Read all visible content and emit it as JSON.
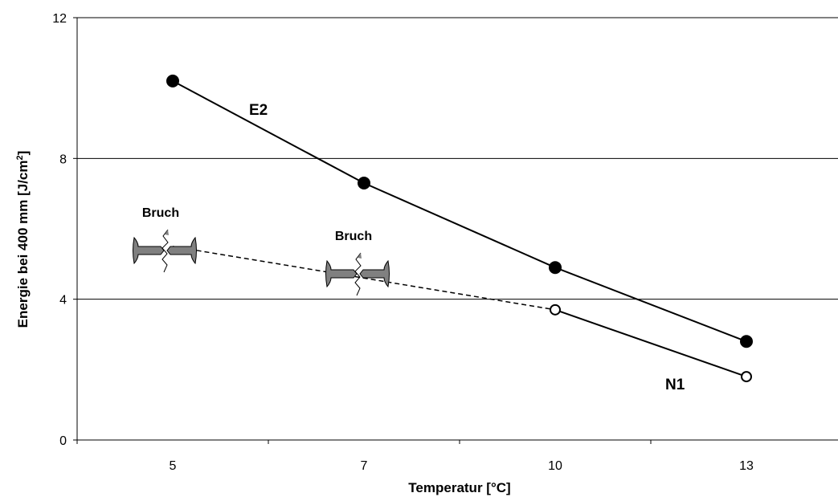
{
  "chart_data": {
    "type": "line",
    "xlabel": "Temperatur [°C]",
    "ylabel_main": "Energie bei 400 mm [J/cm",
    "ylabel_sup": "2",
    "ylabel_end": "]",
    "ylim": [
      0,
      12
    ],
    "yticks": [
      0,
      4,
      8,
      12
    ],
    "ytick_labels": [
      "0",
      "4",
      "8",
      "12"
    ],
    "grid_y": true,
    "categories": [
      "5",
      "7",
      "10",
      "13"
    ],
    "series": [
      {
        "name": "E2",
        "marker": "filled-circle",
        "line_style": "solid",
        "values": [
          10.2,
          7.3,
          4.9,
          2.8
        ]
      },
      {
        "name": "N1",
        "marker": "open-circle",
        "values": [
          null,
          null,
          3.7,
          1.8
        ]
      }
    ],
    "annotations": [
      {
        "text": "Bruch",
        "category": "5",
        "value": 5.5,
        "icon": "fractured-specimen-icon"
      },
      {
        "text": "Bruch",
        "category": "7",
        "value": 4.8,
        "icon": "fractured-specimen-icon"
      }
    ],
    "extrapolated_segment": {
      "series": "N1",
      "line_style": "dashed",
      "from": {
        "category": "5",
        "value": 5.5
      },
      "to": {
        "category": "10",
        "value": 3.7
      }
    },
    "colors": {
      "line": "#000000",
      "grid": "#000000",
      "specimen": "#808080"
    }
  }
}
